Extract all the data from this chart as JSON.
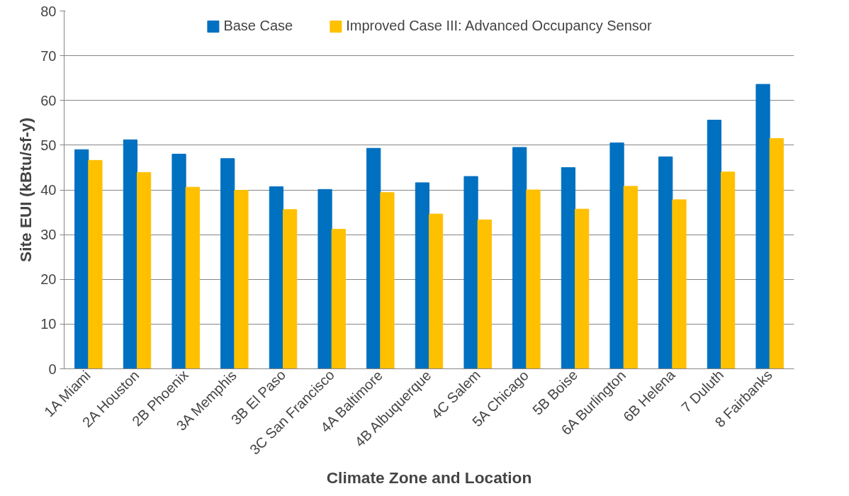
{
  "chart_data": {
    "type": "bar",
    "xlabel": "Climate Zone and Location",
    "ylabel": "Site EUI (kBtu/sf-y)",
    "categories": [
      "1A Miami",
      "2A Houston",
      "2B Phoenix",
      "3A Memphis",
      "3B El Paso",
      "3C San Francisco",
      "4A Baltimore",
      "4B Albuquerque",
      "4C Salem",
      "5A Chicago",
      "5B Boise",
      "6A Burlington",
      "6B Helena",
      "7 Duluth",
      "8 Fairbanks"
    ],
    "series": [
      {
        "name": "Base Case",
        "color": "#0070c0",
        "values": [
          49.0,
          51.2,
          48.0,
          47.0,
          40.7,
          40.1,
          49.3,
          41.6,
          43.0,
          49.5,
          45.0,
          50.5,
          47.4,
          55.6,
          63.6
        ]
      },
      {
        "name": "Improved Case III: Advanced Occupancy Sensor",
        "color": "#ffc000",
        "values": [
          46.6,
          43.9,
          40.6,
          39.9,
          35.6,
          31.2,
          39.4,
          34.6,
          33.3,
          40.0,
          35.7,
          40.8,
          37.8,
          44.0,
          51.5
        ]
      }
    ],
    "ylim": [
      0,
      80
    ],
    "yticks": [
      0,
      10,
      20,
      30,
      40,
      50,
      60,
      70,
      80
    ],
    "grid": "y",
    "legend": "top"
  }
}
